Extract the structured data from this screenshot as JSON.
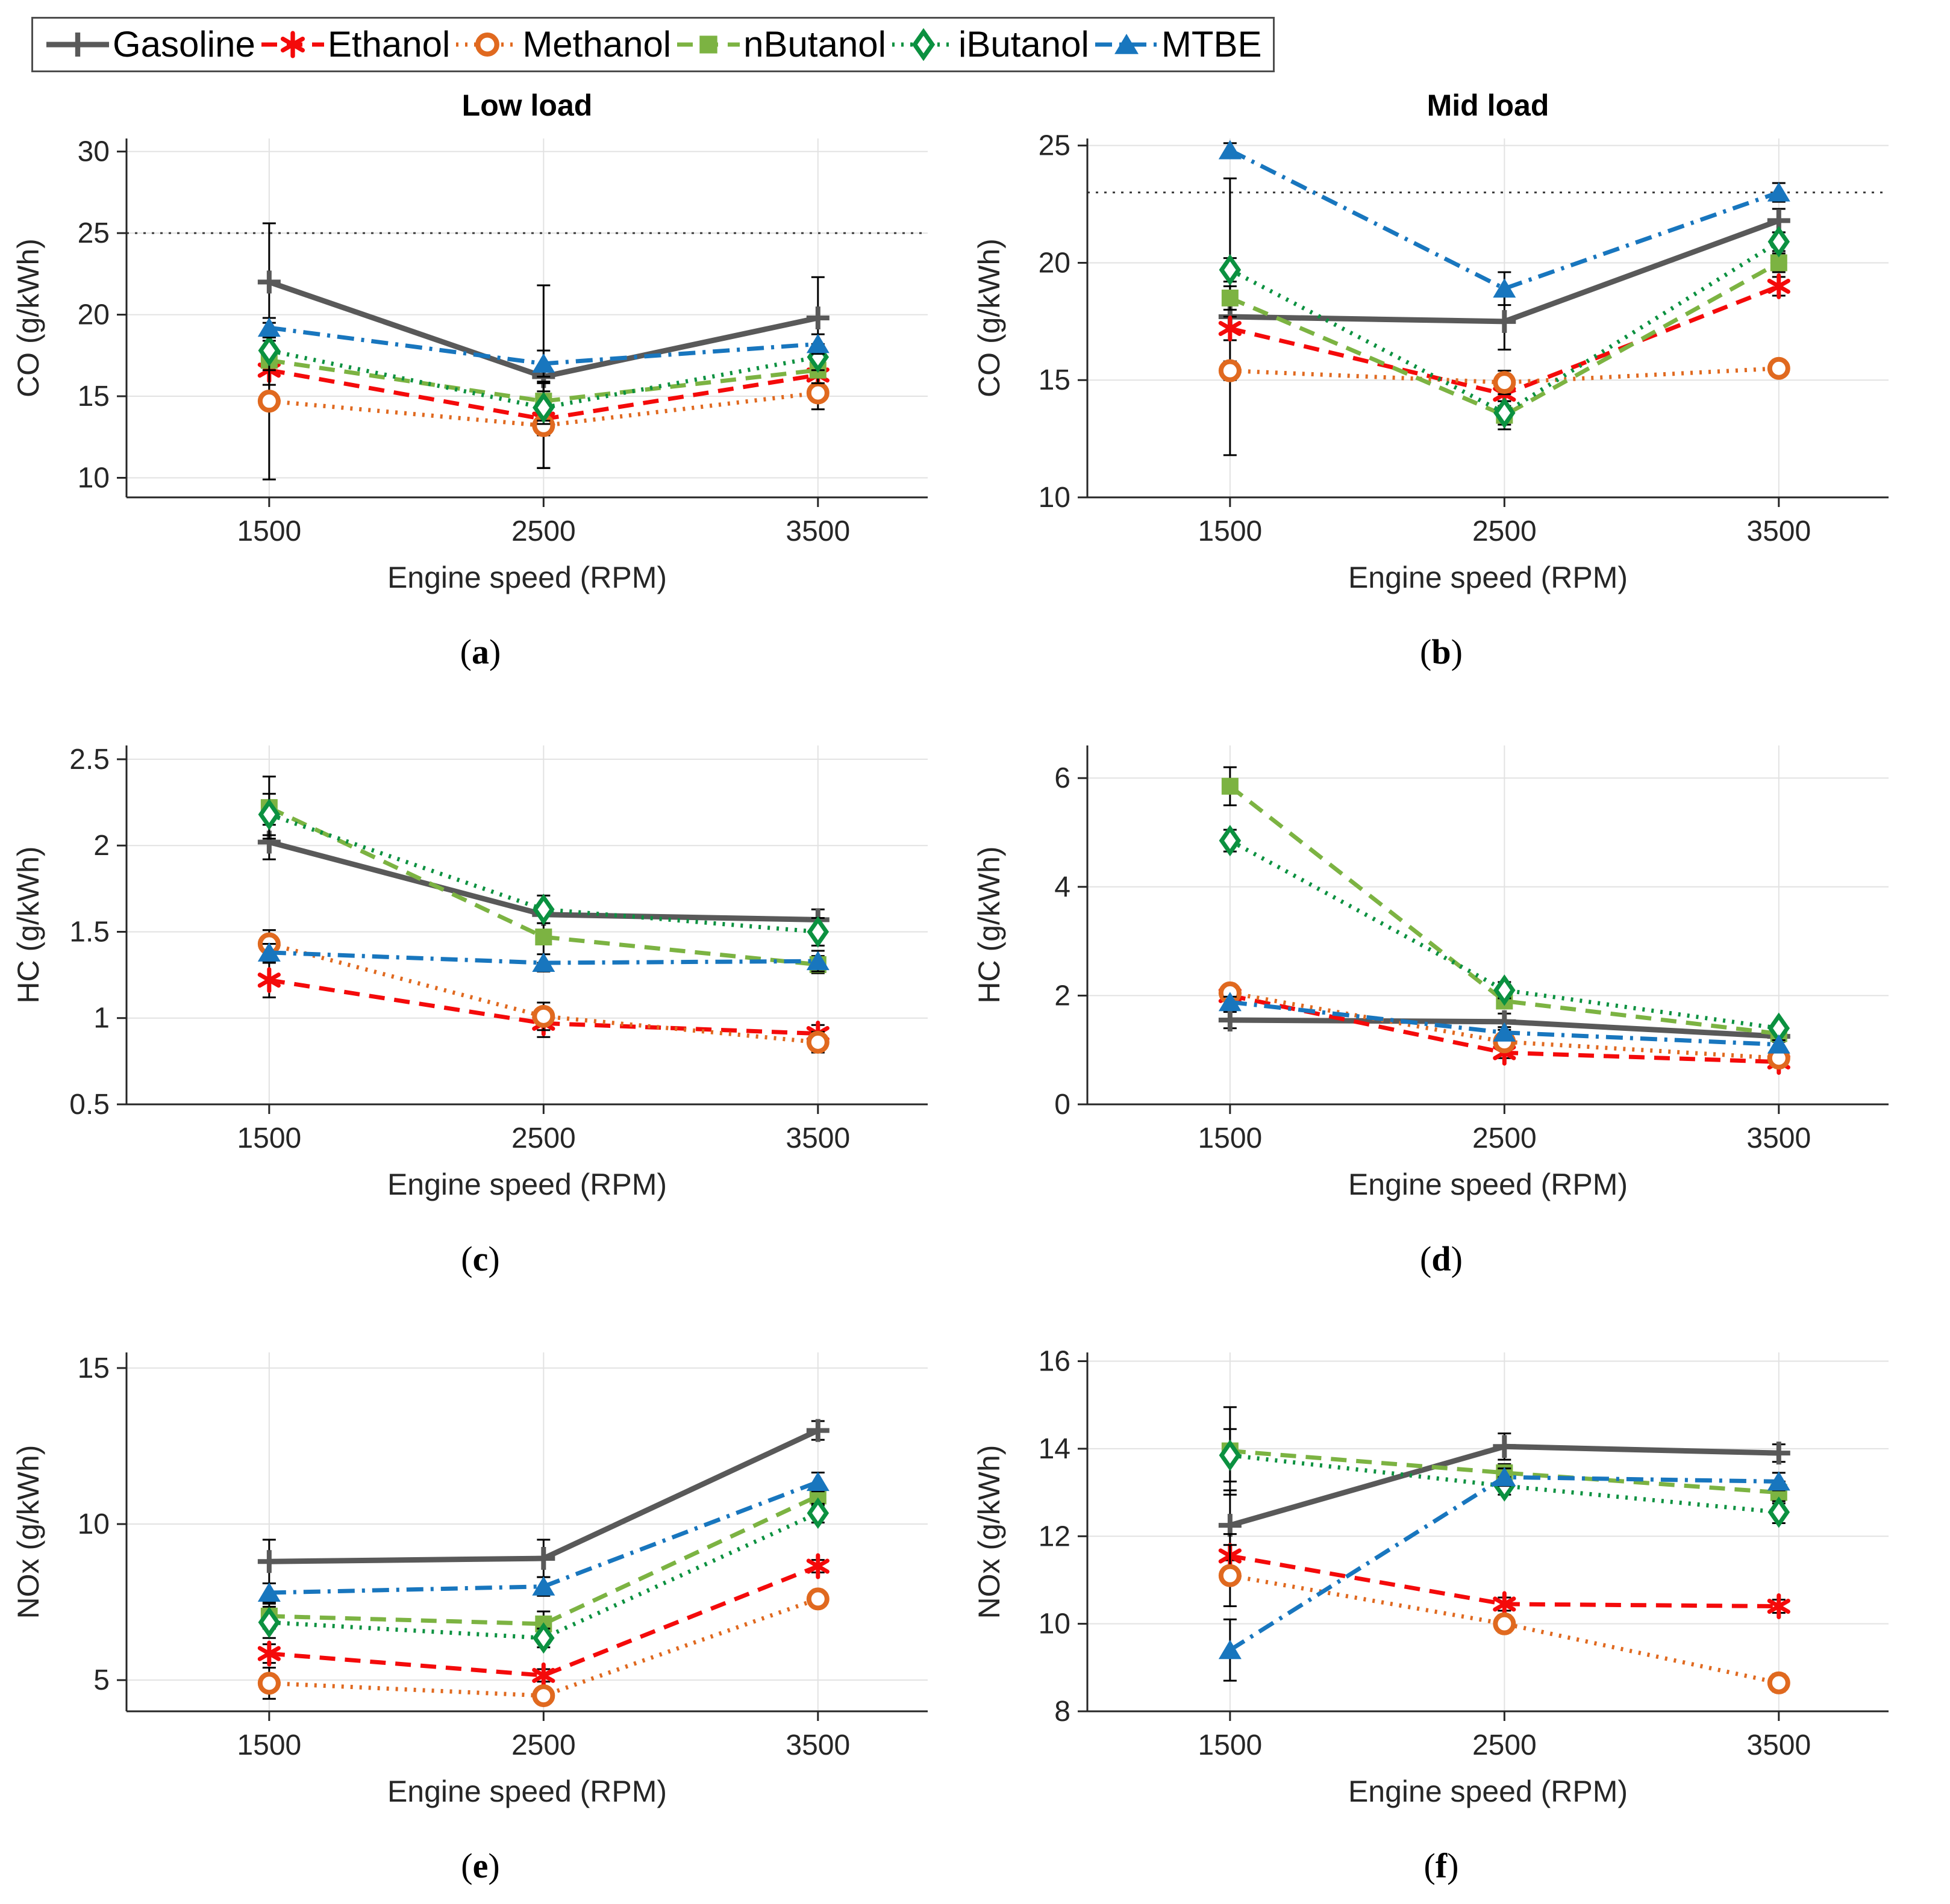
{
  "figure": {
    "legend": {
      "items": [
        {
          "name": "Gasoline",
          "label": "Gasoline",
          "color": "#595959",
          "marker": "plus",
          "line": "solid",
          "width": 9
        },
        {
          "name": "Ethanol",
          "label": "Ethanol",
          "color": "#F40A0A",
          "marker": "asterisk",
          "line": "dash",
          "width": 7
        },
        {
          "name": "Methanol",
          "label": "Methanol",
          "color": "#E0691F",
          "marker": "circle",
          "line": "dot",
          "width": 7
        },
        {
          "name": "nButanol",
          "label": "nButanol",
          "color": "#7CB342",
          "marker": "square",
          "line": "dash",
          "width": 7
        },
        {
          "name": "iButanol",
          "label": "iButanol",
          "color": "#0B9140",
          "marker": "diamond",
          "line": "dot",
          "width": 7
        },
        {
          "name": "MTBE",
          "label": "MTBE",
          "color": "#1876BE",
          "marker": "triangle",
          "line": "dashdot",
          "width": 7
        }
      ]
    }
  },
  "captions": [
    {
      "open": "(",
      "letter": "a",
      "close": ")"
    },
    {
      "open": "(",
      "letter": "b",
      "close": ")"
    },
    {
      "open": "(",
      "letter": "c",
      "close": ")"
    },
    {
      "open": "(",
      "letter": "d",
      "close": ")"
    },
    {
      "open": "(",
      "letter": "e",
      "close": ")"
    },
    {
      "open": "(",
      "letter": "f",
      "close": ")"
    }
  ],
  "chart_data": [
    {
      "type": "line",
      "panel": "a",
      "title": "Low load",
      "xlabel": "Engine speed (RPM)",
      "ylabel": "CO (g/kWh)",
      "x": [
        1500,
        2500,
        3500
      ],
      "xtick_labels": [
        "1500",
        "2500",
        "3500"
      ],
      "xlim": [
        980,
        3900
      ],
      "ylim": [
        8.8,
        30.8
      ],
      "yticks": [
        10,
        15,
        20,
        25,
        30
      ],
      "ref_line": 25,
      "grid": true,
      "legend_position": "top-shared",
      "series": [
        {
          "name": "Gasoline",
          "values": [
            22.0,
            16.2,
            19.8
          ],
          "err": [
            3.6,
            5.6,
            2.5
          ]
        },
        {
          "name": "Ethanol",
          "values": [
            16.6,
            13.6,
            16.3
          ],
          "err": [
            2.0,
            1.0,
            0.9
          ]
        },
        {
          "name": "Methanol",
          "values": [
            14.7,
            13.2,
            15.2
          ],
          "err": [
            4.8,
            2.6,
            1.0
          ]
        },
        {
          "name": "nButanol",
          "values": [
            17.2,
            14.7,
            16.6
          ],
          "err": [
            1.5,
            1.2,
            0.8
          ]
        },
        {
          "name": "iButanol",
          "values": [
            17.8,
            14.3,
            17.4
          ],
          "err": [
            1.2,
            1.0,
            0.8
          ]
        },
        {
          "name": "MTBE",
          "values": [
            19.2,
            17.0,
            18.2
          ],
          "err": [
            0.6,
            0.8,
            0.6
          ]
        }
      ]
    },
    {
      "type": "line",
      "panel": "b",
      "title": "Mid load",
      "xlabel": "Engine speed (RPM)",
      "ylabel": "CO (g/kWh)",
      "x": [
        1500,
        2500,
        3500
      ],
      "xtick_labels": [
        "1500",
        "2500",
        "3500"
      ],
      "xlim": [
        980,
        3900
      ],
      "ylim": [
        10,
        25.3
      ],
      "yticks": [
        10,
        15,
        20,
        25
      ],
      "ref_line": 23,
      "grid": true,
      "legend_position": "top-shared",
      "series": [
        {
          "name": "Gasoline",
          "values": [
            17.7,
            17.5,
            21.8
          ],
          "err": [
            5.9,
            1.2,
            0.5
          ]
        },
        {
          "name": "Ethanol",
          "values": [
            17.2,
            14.4,
            19.0
          ],
          "err": [
            0.5,
            0.5,
            0.4
          ]
        },
        {
          "name": "Methanol",
          "values": [
            15.4,
            14.9,
            15.5
          ],
          "err": [
            0.4,
            0.5,
            0.3
          ]
        },
        {
          "name": "nButanol",
          "values": [
            18.5,
            13.5,
            20.0
          ],
          "err": [
            0.5,
            0.6,
            0.4
          ]
        },
        {
          "name": "iButanol",
          "values": [
            19.7,
            13.6,
            20.9
          ],
          "err": [
            0.5,
            0.5,
            0.4
          ]
        },
        {
          "name": "MTBE",
          "values": [
            24.8,
            18.9,
            23.0
          ],
          "err": [
            0.3,
            0.7,
            0.4
          ]
        }
      ]
    },
    {
      "type": "line",
      "panel": "c",
      "title": "",
      "xlabel": "Engine speed (RPM)",
      "ylabel": "HC (g/kWh)",
      "x": [
        1500,
        2500,
        3500
      ],
      "xtick_labels": [
        "1500",
        "2500",
        "3500"
      ],
      "xlim": [
        980,
        3900
      ],
      "ylim": [
        0.5,
        2.58
      ],
      "yticks": [
        0.5,
        1,
        1.5,
        2,
        2.5
      ],
      "ref_line": null,
      "grid": true,
      "legend_position": "top-shared",
      "series": [
        {
          "name": "Gasoline",
          "values": [
            2.02,
            1.6,
            1.57
          ],
          "err": [
            0.1,
            0.05,
            0.06
          ]
        },
        {
          "name": "Ethanol",
          "values": [
            1.22,
            0.97,
            0.91
          ],
          "err": [
            0.1,
            0.08,
            0.05
          ]
        },
        {
          "name": "Methanol",
          "values": [
            1.43,
            1.01,
            0.86
          ],
          "err": [
            0.08,
            0.08,
            0.06
          ]
        },
        {
          "name": "nButanol",
          "values": [
            2.22,
            1.47,
            1.31
          ],
          "err": [
            0.18,
            0.15,
            0.05
          ]
        },
        {
          "name": "iButanol",
          "values": [
            2.18,
            1.63,
            1.5
          ],
          "err": [
            0.12,
            0.08,
            0.08
          ]
        },
        {
          "name": "MTBE",
          "values": [
            1.38,
            1.32,
            1.33
          ],
          "err": [
            0.05,
            0.05,
            0.06
          ]
        }
      ]
    },
    {
      "type": "line",
      "panel": "d",
      "title": "",
      "xlabel": "Engine speed (RPM)",
      "ylabel": "HC (g/kWh)",
      "x": [
        1500,
        2500,
        3500
      ],
      "xtick_labels": [
        "1500",
        "2500",
        "3500"
      ],
      "xlim": [
        980,
        3900
      ],
      "ylim": [
        0,
        6.6
      ],
      "yticks": [
        0,
        2,
        4,
        6
      ],
      "ref_line": null,
      "grid": true,
      "legend_position": "top-shared",
      "series": [
        {
          "name": "Gasoline",
          "values": [
            1.55,
            1.52,
            1.25
          ],
          "err": [
            0.15,
            0.15,
            0.1
          ]
        },
        {
          "name": "Ethanol",
          "values": [
            2.0,
            0.95,
            0.78
          ],
          "err": [
            0.1,
            0.1,
            0.06
          ]
        },
        {
          "name": "Methanol",
          "values": [
            2.05,
            1.15,
            0.85
          ],
          "err": [
            0.15,
            0.1,
            0.08
          ]
        },
        {
          "name": "nButanol",
          "values": [
            5.85,
            1.9,
            1.3
          ],
          "err": [
            0.35,
            0.1,
            0.1
          ]
        },
        {
          "name": "iButanol",
          "values": [
            4.85,
            2.1,
            1.4
          ],
          "err": [
            0.2,
            0.15,
            0.1
          ]
        },
        {
          "name": "MTBE",
          "values": [
            1.88,
            1.32,
            1.1
          ],
          "err": [
            0.1,
            0.1,
            0.08
          ]
        }
      ]
    },
    {
      "type": "line",
      "panel": "e",
      "title": "",
      "xlabel": "Engine speed (RPM)",
      "ylabel": "NOx (g/kWh)",
      "x": [
        1500,
        2500,
        3500
      ],
      "xtick_labels": [
        "1500",
        "2500",
        "3500"
      ],
      "xlim": [
        980,
        3900
      ],
      "ylim": [
        4.0,
        15.5
      ],
      "yticks": [
        5,
        10,
        15
      ],
      "ref_line": null,
      "grid": true,
      "legend_position": "top-shared",
      "series": [
        {
          "name": "Gasoline",
          "values": [
            8.8,
            8.9,
            13.0
          ],
          "err": [
            0.7,
            0.6,
            0.3
          ]
        },
        {
          "name": "Ethanol",
          "values": [
            5.85,
            5.15,
            8.65
          ],
          "err": [
            0.3,
            0.2,
            0.2
          ]
        },
        {
          "name": "Methanol",
          "values": [
            4.9,
            4.5,
            7.6
          ],
          "err": [
            0.5,
            0.2,
            0.2
          ]
        },
        {
          "name": "nButanol",
          "values": [
            7.05,
            6.8,
            10.9
          ],
          "err": [
            0.4,
            0.4,
            0.3
          ]
        },
        {
          "name": "iButanol",
          "values": [
            6.85,
            6.35,
            10.35
          ],
          "err": [
            0.5,
            0.3,
            0.3
          ]
        },
        {
          "name": "MTBE",
          "values": [
            7.8,
            8.0,
            11.35
          ],
          "err": [
            0.3,
            0.3,
            0.3
          ]
        }
      ]
    },
    {
      "type": "line",
      "panel": "f",
      "title": "",
      "xlabel": "Engine speed (RPM)",
      "ylabel": "NOx (g/kWh)",
      "x": [
        1500,
        2500,
        3500
      ],
      "xtick_labels": [
        "1500",
        "2500",
        "3500"
      ],
      "xlim": [
        980,
        3900
      ],
      "ylim": [
        8,
        16.2
      ],
      "yticks": [
        8,
        10,
        12,
        14,
        16
      ],
      "ref_line": null,
      "grid": true,
      "legend_position": "top-shared",
      "series": [
        {
          "name": "Gasoline",
          "values": [
            12.25,
            14.05,
            13.9
          ],
          "err": [
            0.8,
            0.3,
            0.2
          ]
        },
        {
          "name": "Ethanol",
          "values": [
            11.55,
            10.45,
            10.4
          ],
          "err": [
            0.5,
            0.15,
            0.15
          ]
        },
        {
          "name": "Methanol",
          "values": [
            11.1,
            10.0,
            8.65
          ],
          "err": [
            0.7,
            0.2,
            0.2
          ]
        },
        {
          "name": "nButanol",
          "values": [
            13.95,
            13.45,
            13.0
          ],
          "err": [
            1.0,
            0.2,
            0.25
          ]
        },
        {
          "name": "iButanol",
          "values": [
            13.85,
            13.15,
            12.55
          ],
          "err": [
            0.6,
            0.2,
            0.25
          ]
        },
        {
          "name": "MTBE",
          "values": [
            9.4,
            13.35,
            13.25
          ],
          "err": [
            0.7,
            0.2,
            0.2
          ]
        }
      ]
    }
  ]
}
